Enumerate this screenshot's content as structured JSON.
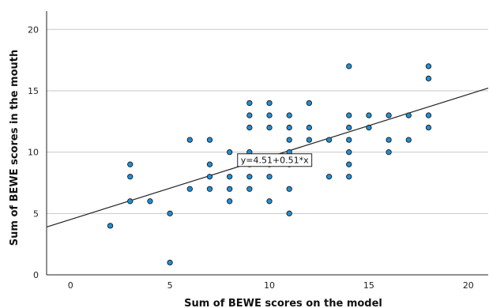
{
  "chart_data": {
    "type": "scatter",
    "xlabel": "Sum of BEWE scores on the model",
    "ylabel": "Sum of BEWE scores in the mouth",
    "xlim": [
      -1.2,
      21
    ],
    "ylim": [
      0,
      21.5
    ],
    "xticks": [
      0,
      5,
      10,
      15,
      20
    ],
    "yticks": [
      0,
      5,
      10,
      15,
      20
    ],
    "grid": "horizontal",
    "point_color": "#1f8fd6",
    "line_color": "#222222",
    "fit": {
      "intercept": 4.51,
      "slope": 0.51,
      "label": "y=4.51+0.51*x"
    },
    "points": [
      [
        2,
        4
      ],
      [
        3,
        6
      ],
      [
        3,
        8
      ],
      [
        3,
        9
      ],
      [
        4,
        6
      ],
      [
        5,
        1
      ],
      [
        5,
        5
      ],
      [
        6,
        7
      ],
      [
        6,
        11
      ],
      [
        7,
        7
      ],
      [
        7,
        8
      ],
      [
        7,
        9
      ],
      [
        7,
        11
      ],
      [
        8,
        6
      ],
      [
        8,
        7
      ],
      [
        8,
        8
      ],
      [
        8,
        10
      ],
      [
        9,
        7
      ],
      [
        9,
        8
      ],
      [
        9,
        9
      ],
      [
        9,
        10
      ],
      [
        9,
        12
      ],
      [
        9,
        13
      ],
      [
        9,
        14
      ],
      [
        10,
        6
      ],
      [
        10,
        8
      ],
      [
        10,
        9
      ],
      [
        10,
        12
      ],
      [
        10,
        13
      ],
      [
        10,
        14
      ],
      [
        11,
        5
      ],
      [
        11,
        7
      ],
      [
        11,
        9
      ],
      [
        11,
        10
      ],
      [
        11,
        11
      ],
      [
        11,
        12
      ],
      [
        11,
        13
      ],
      [
        12,
        11
      ],
      [
        12,
        12
      ],
      [
        12,
        14
      ],
      [
        13,
        8
      ],
      [
        13,
        11
      ],
      [
        14,
        8
      ],
      [
        14,
        9
      ],
      [
        14,
        10
      ],
      [
        14,
        11
      ],
      [
        14,
        12
      ],
      [
        14,
        13
      ],
      [
        14,
        17
      ],
      [
        15,
        12
      ],
      [
        15,
        13
      ],
      [
        16,
        10
      ],
      [
        16,
        11
      ],
      [
        16,
        13
      ],
      [
        17,
        11
      ],
      [
        17,
        13
      ],
      [
        18,
        12
      ],
      [
        18,
        13
      ],
      [
        18,
        16
      ],
      [
        18,
        17
      ]
    ]
  }
}
